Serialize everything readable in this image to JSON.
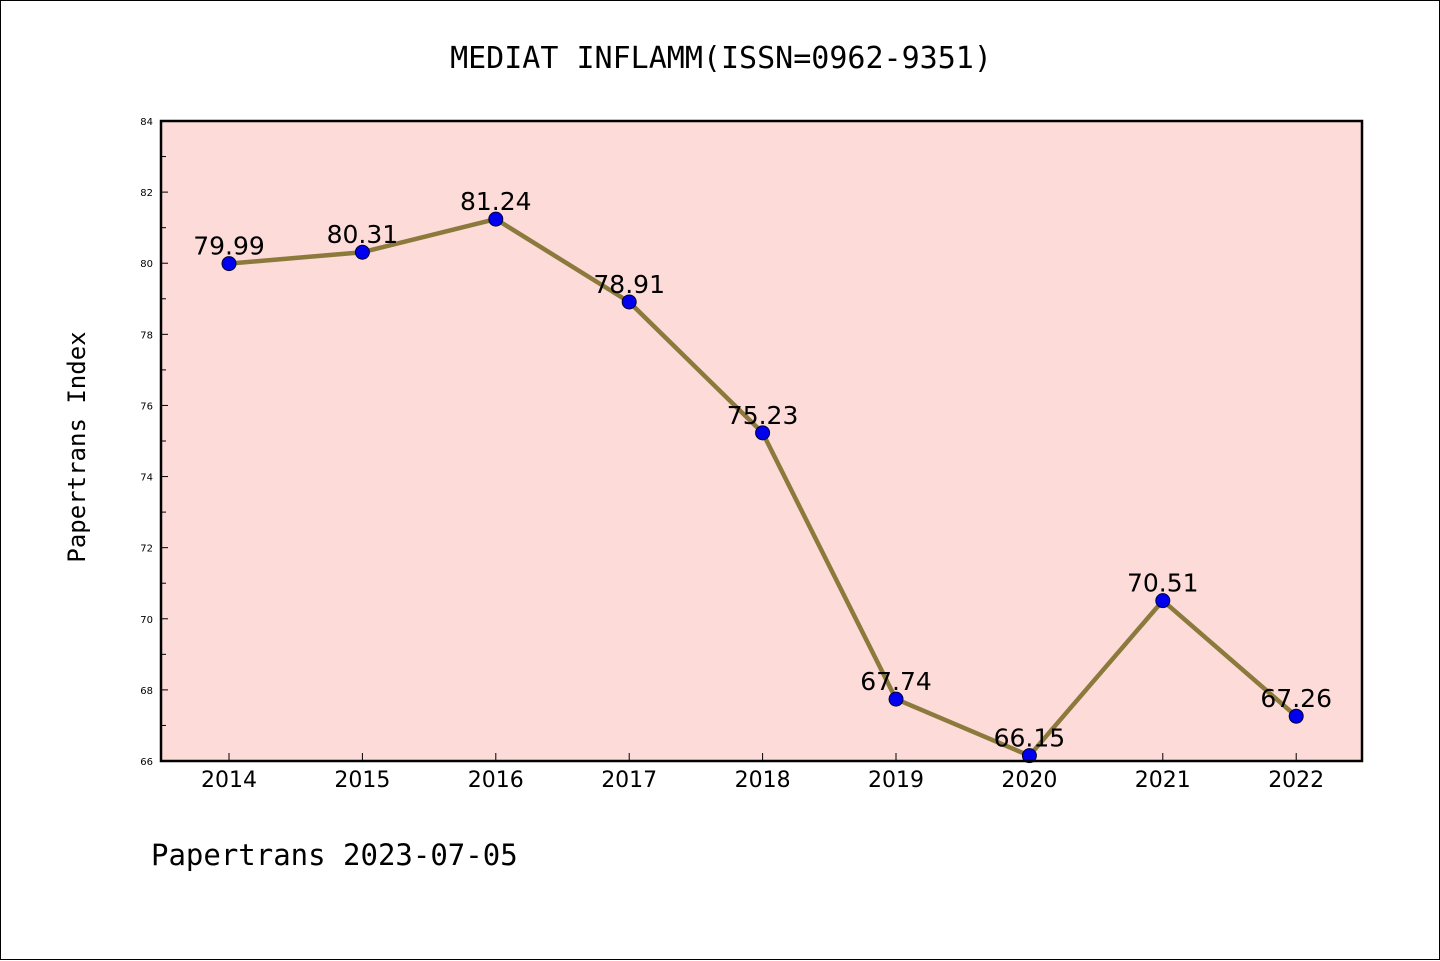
{
  "chart_data": {
    "type": "line",
    "title": "MEDIAT INFLAMM(ISSN=0962-9351)",
    "ylabel": "Papertrans Index",
    "xlabel": "",
    "categories": [
      "2014",
      "2015",
      "2016",
      "2017",
      "2018",
      "2019",
      "2020",
      "2021",
      "2022"
    ],
    "values": [
      79.99,
      80.31,
      81.24,
      78.91,
      75.23,
      67.74,
      66.15,
      70.51,
      67.26
    ],
    "data_labels": [
      "79.99",
      "80.31",
      "81.24",
      "78.91",
      "75.23",
      "67.74",
      "66.15",
      "70.51",
      "67.26"
    ],
    "ylim": [
      66,
      84
    ],
    "yticks": [
      "66",
      "68",
      "70",
      "72",
      "74",
      "76",
      "78",
      "80",
      "82",
      "84"
    ],
    "grid": false,
    "colors": {
      "plot_background": "#fddbd9",
      "line": "#8b7a3c",
      "marker": "#0000ee",
      "marker_edge": "#000033"
    },
    "footer": "Papertrans 2023-07-05"
  }
}
